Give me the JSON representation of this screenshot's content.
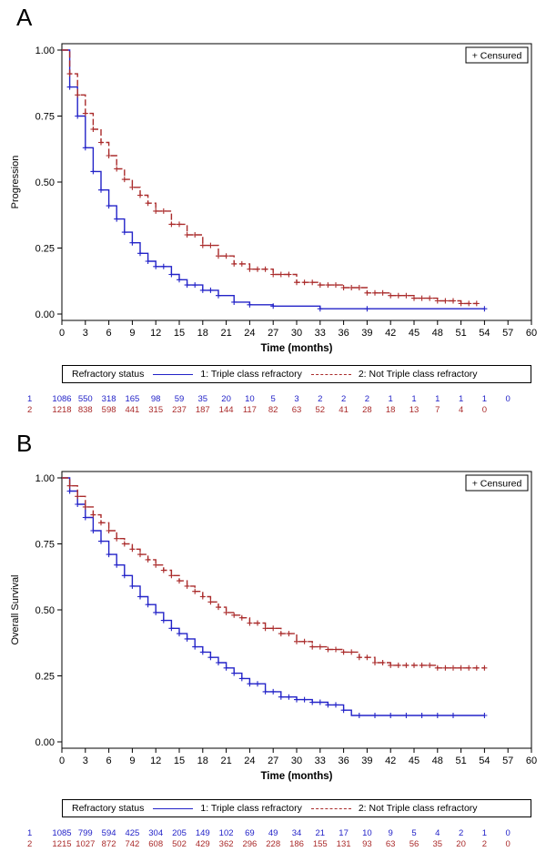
{
  "colors": {
    "group1": "#2323c8",
    "group2": "#aa2b2b",
    "axis": "#000000"
  },
  "panels": [
    {
      "letter": "A",
      "censored_label": "+ Censured",
      "legend": {
        "title": "Refractory status",
        "item1": "1: Triple class refractory",
        "item2": "2: Not Triple class refractory"
      },
      "risk": {
        "group1_label": "1",
        "group2_label": "2",
        "group1": [
          "1086",
          "550",
          "318",
          "165",
          "98",
          "59",
          "35",
          "20",
          "10",
          "5",
          "3",
          "2",
          "2",
          "2",
          "1",
          "1",
          "1",
          "1",
          "1",
          "0"
        ],
        "group2": [
          "1218",
          "838",
          "598",
          "441",
          "315",
          "237",
          "187",
          "144",
          "117",
          "82",
          "63",
          "52",
          "41",
          "28",
          "18",
          "13",
          "7",
          "4",
          "0",
          ""
        ]
      }
    },
    {
      "letter": "B",
      "censored_label": "+ Censured",
      "legend": {
        "title": "Refractory status",
        "item1": "1: Triple class refractory",
        "item2": "2: Not Triple class refractory"
      },
      "risk": {
        "group1_label": "1",
        "group2_label": "2",
        "group1": [
          "1085",
          "799",
          "594",
          "425",
          "304",
          "205",
          "149",
          "102",
          "69",
          "49",
          "34",
          "21",
          "17",
          "10",
          "9",
          "5",
          "4",
          "2",
          "1",
          "0"
        ],
        "group2": [
          "1215",
          "1027",
          "872",
          "742",
          "608",
          "502",
          "429",
          "362",
          "296",
          "228",
          "186",
          "155",
          "131",
          "93",
          "63",
          "56",
          "35",
          "20",
          "2",
          "0"
        ]
      }
    }
  ],
  "chart_data": [
    {
      "type": "line",
      "title": "",
      "xlabel": "Time (months)",
      "ylabel": "Progression",
      "xlim": [
        0,
        60
      ],
      "ylim": [
        0,
        1
      ],
      "xticks": [
        0,
        3,
        6,
        9,
        12,
        15,
        18,
        21,
        24,
        27,
        30,
        33,
        36,
        39,
        42,
        45,
        48,
        51,
        54,
        57,
        60
      ],
      "yticks": [
        0,
        0.25,
        0.5,
        0.75,
        1.0
      ],
      "ytick_labels": [
        "0.00",
        "0.25",
        "0.50",
        "0.75",
        "1.00"
      ],
      "series": [
        {
          "name": "1: Triple class refractory",
          "x": [
            0,
            1,
            2,
            3,
            4,
            5,
            6,
            7,
            8,
            9,
            10,
            11,
            12,
            14,
            15,
            16,
            18,
            20,
            22,
            24,
            27,
            30,
            33,
            36,
            40,
            45,
            50,
            54
          ],
          "y": [
            1.0,
            0.86,
            0.75,
            0.63,
            0.54,
            0.47,
            0.41,
            0.36,
            0.31,
            0.27,
            0.23,
            0.2,
            0.18,
            0.15,
            0.13,
            0.11,
            0.09,
            0.07,
            0.045,
            0.035,
            0.03,
            0.03,
            0.02,
            0.02,
            0.02,
            0.02,
            0.02,
            0.02
          ]
        },
        {
          "name": "2: Not Triple class refractory",
          "x": [
            0,
            1,
            2,
            3,
            4,
            5,
            6,
            7,
            8,
            9,
            10,
            11,
            12,
            14,
            16,
            18,
            20,
            22,
            24,
            27,
            30,
            33,
            36,
            39,
            42,
            45,
            48,
            51,
            53
          ],
          "y": [
            1.0,
            0.91,
            0.83,
            0.76,
            0.7,
            0.65,
            0.6,
            0.55,
            0.51,
            0.48,
            0.45,
            0.42,
            0.39,
            0.34,
            0.3,
            0.26,
            0.22,
            0.19,
            0.17,
            0.15,
            0.12,
            0.11,
            0.1,
            0.08,
            0.07,
            0.06,
            0.05,
            0.04,
            0.04
          ]
        }
      ],
      "censored_x": {
        "series1": [
          1,
          2,
          3,
          4,
          5,
          6,
          7,
          8,
          9,
          10,
          11,
          12,
          13,
          14,
          15,
          16,
          17,
          18,
          19,
          20,
          22,
          24,
          27,
          33,
          39,
          54
        ],
        "series2": [
          1,
          2,
          3,
          4,
          5,
          6,
          7,
          8,
          9,
          10,
          11,
          12,
          13,
          14,
          15,
          16,
          17,
          18,
          19,
          20,
          21,
          22,
          23,
          24,
          25,
          26,
          27,
          28,
          29,
          30,
          31,
          32,
          33,
          34,
          35,
          36,
          37,
          38,
          39,
          40,
          41,
          42,
          43,
          44,
          45,
          46,
          47,
          48,
          49,
          50,
          51,
          52,
          53
        ]
      }
    },
    {
      "type": "line",
      "title": "",
      "xlabel": "Time (months)",
      "ylabel": "Overall Survival",
      "xlim": [
        0,
        60
      ],
      "ylim": [
        0,
        1
      ],
      "xticks": [
        0,
        3,
        6,
        9,
        12,
        15,
        18,
        21,
        24,
        27,
        30,
        33,
        36,
        39,
        42,
        45,
        48,
        51,
        54,
        57,
        60
      ],
      "yticks": [
        0,
        0.25,
        0.5,
        0.75,
        1.0
      ],
      "ytick_labels": [
        "0.00",
        "0.25",
        "0.50",
        "0.75",
        "1.00"
      ],
      "series": [
        {
          "name": "1: Triple class refractory",
          "x": [
            0,
            1,
            2,
            3,
            4,
            5,
            6,
            7,
            8,
            9,
            10,
            11,
            12,
            13,
            14,
            15,
            16,
            17,
            18,
            19,
            20,
            21,
            22,
            23,
            24,
            26,
            28,
            30,
            32,
            34,
            36,
            37,
            38,
            40,
            45,
            50,
            54
          ],
          "y": [
            1.0,
            0.95,
            0.9,
            0.85,
            0.8,
            0.76,
            0.71,
            0.67,
            0.63,
            0.59,
            0.55,
            0.52,
            0.49,
            0.46,
            0.43,
            0.41,
            0.39,
            0.36,
            0.34,
            0.32,
            0.3,
            0.28,
            0.26,
            0.24,
            0.22,
            0.19,
            0.17,
            0.16,
            0.15,
            0.14,
            0.12,
            0.1,
            0.1,
            0.1,
            0.1,
            0.1,
            0.1
          ]
        },
        {
          "name": "2: Not Triple class refractory",
          "x": [
            0,
            1,
            2,
            3,
            4,
            5,
            6,
            7,
            8,
            9,
            10,
            11,
            12,
            13,
            14,
            15,
            16,
            17,
            18,
            19,
            20,
            21,
            22,
            23,
            24,
            26,
            28,
            30,
            32,
            34,
            36,
            38,
            40,
            42,
            45,
            48,
            50,
            54
          ],
          "y": [
            1.0,
            0.97,
            0.93,
            0.89,
            0.86,
            0.83,
            0.8,
            0.77,
            0.75,
            0.73,
            0.71,
            0.69,
            0.67,
            0.65,
            0.63,
            0.61,
            0.59,
            0.57,
            0.55,
            0.53,
            0.51,
            0.49,
            0.48,
            0.47,
            0.45,
            0.43,
            0.41,
            0.38,
            0.36,
            0.35,
            0.34,
            0.32,
            0.3,
            0.29,
            0.29,
            0.28,
            0.28,
            0.28
          ]
        }
      ],
      "censored_x": {
        "series1": [
          1,
          2,
          3,
          4,
          5,
          6,
          7,
          8,
          9,
          10,
          11,
          12,
          13,
          14,
          15,
          16,
          17,
          18,
          19,
          20,
          21,
          22,
          23,
          24,
          25,
          26,
          27,
          28,
          29,
          30,
          31,
          32,
          33,
          34,
          35,
          36,
          38,
          40,
          42,
          44,
          46,
          48,
          50,
          54
        ],
        "series2": [
          1,
          2,
          3,
          4,
          5,
          6,
          7,
          8,
          9,
          10,
          11,
          12,
          13,
          14,
          15,
          16,
          17,
          18,
          19,
          20,
          21,
          22,
          23,
          24,
          25,
          26,
          27,
          28,
          29,
          30,
          31,
          32,
          33,
          34,
          35,
          36,
          37,
          38,
          39,
          40,
          41,
          42,
          43,
          44,
          45,
          46,
          47,
          48,
          49,
          50,
          51,
          52,
          53,
          54
        ]
      }
    }
  ]
}
